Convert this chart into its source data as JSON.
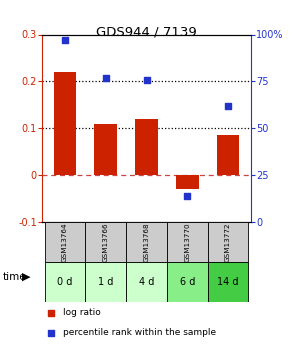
{
  "title": "GDS944 / 7139",
  "samples": [
    "GSM13764",
    "GSM13766",
    "GSM13768",
    "GSM13770",
    "GSM13772"
  ],
  "time_labels": [
    "0 d",
    "1 d",
    "4 d",
    "6 d",
    "14 d"
  ],
  "log_ratios": [
    0.22,
    0.11,
    0.12,
    -0.03,
    0.085
  ],
  "percentile_ranks": [
    97,
    77,
    76,
    14,
    62
  ],
  "bar_color": "#cc2200",
  "dot_color": "#2233cc",
  "ylim_left": [
    -0.1,
    0.3
  ],
  "ylim_right": [
    0,
    100
  ],
  "hlines_black": [
    0.1,
    0.2
  ],
  "hline_red": 0.0,
  "time_bg_colors": [
    "#ccffcc",
    "#ccffcc",
    "#ccffcc",
    "#88ee88",
    "#44cc44"
  ],
  "gsm_bg_color": "#cccccc",
  "legend_items": [
    "log ratio",
    "percentile rank within the sample"
  ],
  "legend_colors": [
    "#cc2200",
    "#2233cc"
  ],
  "background_color": "#ffffff",
  "left_tick_labels": [
    "-0.1",
    "0",
    "0.1",
    "0.2",
    "0.3"
  ],
  "left_tick_vals": [
    -0.1,
    0.0,
    0.1,
    0.2,
    0.3
  ],
  "right_tick_vals": [
    0,
    25,
    50,
    75,
    100
  ],
  "right_tick_labels": [
    "0",
    "25",
    "50",
    "75",
    "100%"
  ]
}
